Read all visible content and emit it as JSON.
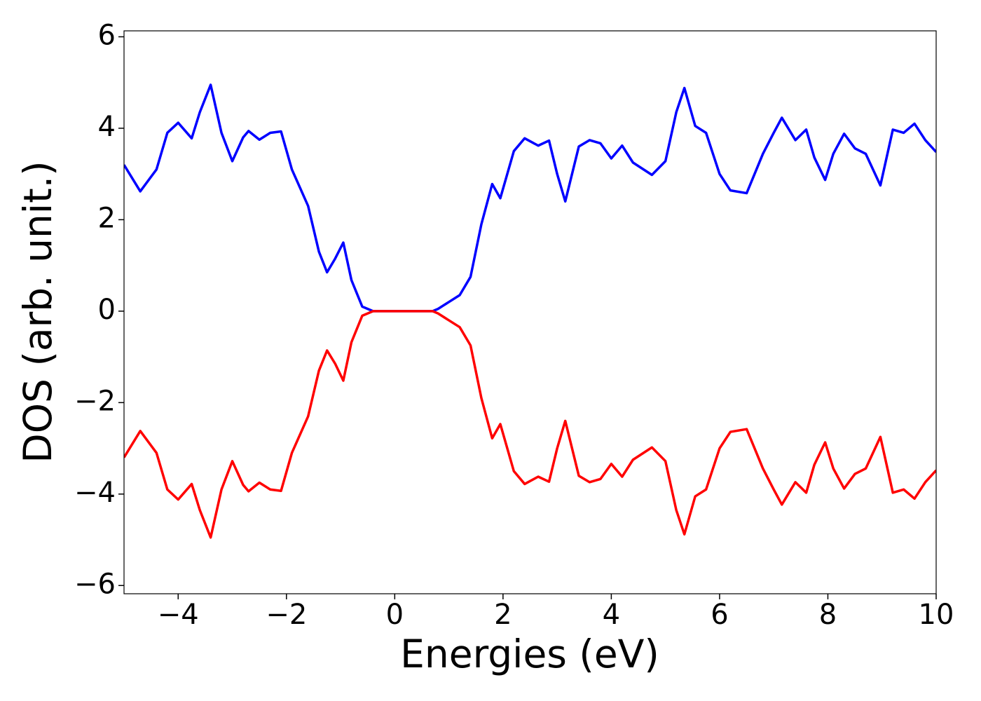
{
  "chart_data": {
    "type": "line",
    "xlabel": "Energies (eV)",
    "ylabel": "DOS (arb. unit.)",
    "x": [
      -5,
      -4.7,
      -4.4,
      -4.2,
      -4.0,
      -3.75,
      -3.6,
      -3.4,
      -3.2,
      -3.0,
      -2.8,
      -2.7,
      -2.5,
      -2.3,
      -2.1,
      -1.9,
      -1.6,
      -1.4,
      -1.25,
      -1.1,
      -0.95,
      -0.8,
      -0.6,
      -0.4,
      0,
      0.4,
      0.7,
      0.8,
      1.0,
      1.2,
      1.4,
      1.6,
      1.8,
      1.95,
      2.2,
      2.4,
      2.65,
      2.85,
      3.0,
      3.15,
      3.4,
      3.6,
      3.8,
      4.0,
      4.2,
      4.4,
      4.75,
      5.0,
      5.2,
      5.35,
      5.55,
      5.75,
      6.0,
      6.2,
      6.5,
      6.8,
      7.0,
      7.15,
      7.4,
      7.6,
      7.75,
      7.95,
      8.1,
      8.3,
      8.5,
      8.7,
      8.97,
      9.2,
      9.4,
      9.6,
      9.8,
      10.0
    ],
    "series": [
      {
        "color": "#0000ff",
        "values": [
          3.2,
          2.62,
          3.1,
          3.9,
          4.12,
          3.78,
          4.35,
          4.95,
          3.9,
          3.28,
          3.8,
          3.94,
          3.75,
          3.9,
          3.93,
          3.1,
          2.3,
          1.3,
          0.85,
          1.15,
          1.5,
          0.68,
          0.1,
          0,
          0,
          0,
          0,
          0.05,
          0.2,
          0.35,
          0.75,
          1.9,
          2.78,
          2.47,
          3.5,
          3.78,
          3.62,
          3.73,
          3.0,
          2.4,
          3.6,
          3.74,
          3.67,
          3.34,
          3.62,
          3.25,
          2.98,
          3.28,
          4.35,
          4.88,
          4.05,
          3.9,
          3.0,
          2.64,
          2.58,
          3.44,
          3.9,
          4.23,
          3.74,
          3.97,
          3.36,
          2.87,
          3.44,
          3.88,
          3.56,
          3.44,
          2.75,
          3.97,
          3.9,
          4.1,
          3.74,
          3.48
        ]
      },
      {
        "color": "#ff0000",
        "values": [
          -3.2,
          -2.62,
          -3.1,
          -3.9,
          -4.12,
          -3.78,
          -4.35,
          -4.95,
          -3.9,
          -3.28,
          -3.8,
          -3.94,
          -3.75,
          -3.9,
          -3.93,
          -3.1,
          -2.3,
          -1.3,
          -0.86,
          -1.15,
          -1.52,
          -0.68,
          -0.1,
          0,
          0,
          0,
          0,
          -0.05,
          -0.2,
          -0.35,
          -0.75,
          -1.9,
          -2.78,
          -2.47,
          -3.5,
          -3.78,
          -3.62,
          -3.73,
          -3.0,
          -2.4,
          -3.6,
          -3.74,
          -3.67,
          -3.34,
          -3.62,
          -3.25,
          -2.98,
          -3.28,
          -4.35,
          -4.88,
          -4.05,
          -3.9,
          -3.0,
          -2.64,
          -2.58,
          -3.44,
          -3.9,
          -4.23,
          -3.74,
          -3.97,
          -3.36,
          -2.87,
          -3.44,
          -3.88,
          -3.56,
          -3.44,
          -2.75,
          -3.97,
          -3.9,
          -4.1,
          -3.74,
          -3.48
        ]
      }
    ],
    "xlim": [
      -5,
      10
    ],
    "xticks": [
      {
        "value": -4,
        "label": "−4"
      },
      {
        "value": -2,
        "label": "−2"
      },
      0,
      2,
      4,
      6,
      8,
      10
    ],
    "ylim": [
      -6.18,
      6.13
    ],
    "yticks": [
      {
        "value": -6,
        "label": "−6"
      },
      {
        "value": -4,
        "label": "−4"
      },
      {
        "value": -2,
        "label": "−2"
      },
      0,
      2,
      4,
      6
    ],
    "grid": false
  }
}
